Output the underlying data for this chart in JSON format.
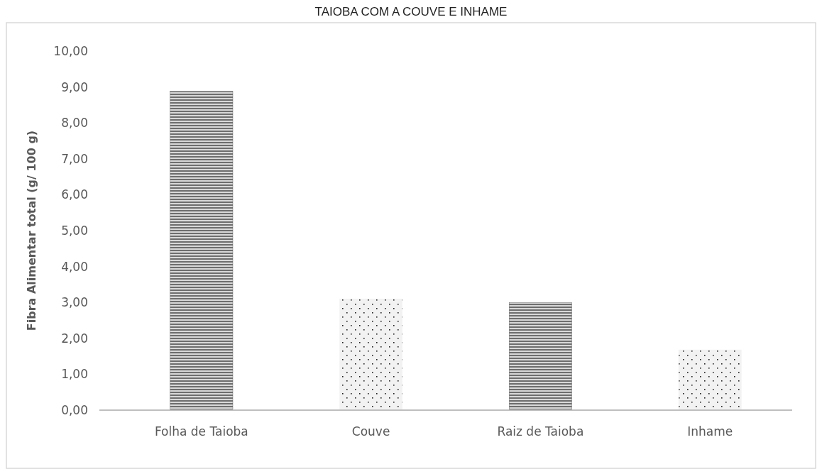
{
  "chart_data": {
    "type": "bar",
    "title": "TAIOBA COM A COUVE E INHAME",
    "ylabel": "Fibra Alimentar total (g/ 100 g)",
    "categories": [
      "Folha de Taioba",
      "Couve",
      "Raiz de Taioba",
      "Inhame"
    ],
    "values": [
      8.88,
      3.1,
      3.0,
      1.68
    ],
    "colors": [
      "#6e6e6e",
      "#f2f2f2",
      "#6e6e6e",
      "#f2f2f2"
    ],
    "ylim": [
      0,
      10
    ],
    "yticks": [
      {
        "value": 0,
        "label": "0,00"
      },
      {
        "value": 1,
        "label": "1,00"
      },
      {
        "value": 2,
        "label": "2,00"
      },
      {
        "value": 3,
        "label": "3,00"
      },
      {
        "value": 4,
        "label": "4,00"
      },
      {
        "value": 5,
        "label": "5,00"
      },
      {
        "value": 6,
        "label": "6,00"
      },
      {
        "value": 7,
        "label": "7,00"
      },
      {
        "value": 8,
        "label": "8,00"
      },
      {
        "value": 9,
        "label": "9,00"
      },
      {
        "value": 10,
        "label": "10,00"
      }
    ],
    "grid": false
  }
}
